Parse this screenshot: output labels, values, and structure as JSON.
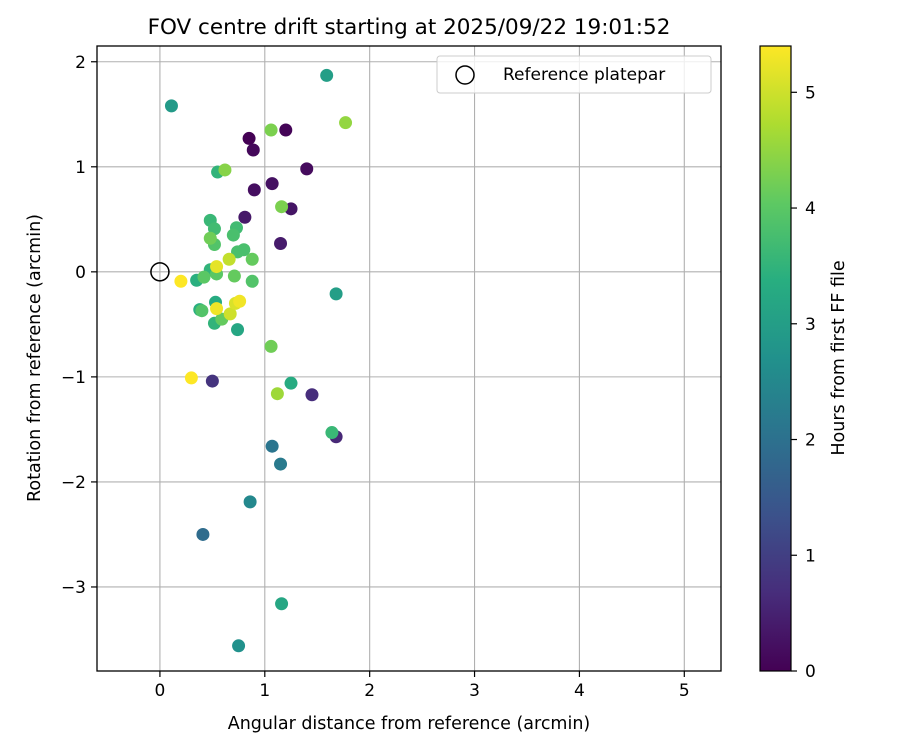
{
  "chart_data": {
    "type": "scatter",
    "title": "FOV centre drift starting at 2025/09/22 19:01:52",
    "xlabel": "Angular distance from reference (arcmin)",
    "ylabel": "Rotation from reference (arcmin)",
    "xlim": [
      -0.6,
      5.35
    ],
    "ylim": [
      -3.8,
      2.15
    ],
    "xticks": [
      0,
      1,
      2,
      3,
      4,
      5
    ],
    "yticks": [
      -3,
      -2,
      -1,
      0,
      1,
      2
    ],
    "xtick_labels": [
      "0",
      "1",
      "2",
      "3",
      "4",
      "5"
    ],
    "ytick_labels": [
      "−3",
      "−2",
      "−1",
      "0",
      "1",
      "2"
    ],
    "grid": true,
    "legend": {
      "position": "top-right",
      "label": "Reference platepar"
    },
    "reference_point": {
      "x": 0,
      "y": 0
    },
    "colorbar": {
      "label": "Hours from first FF file",
      "colormap": "viridis",
      "range": [
        0,
        5.4
      ],
      "ticks": [
        0,
        1,
        2,
        3,
        4,
        5
      ],
      "tick_labels": [
        "0",
        "1",
        "2",
        "3",
        "4",
        "5"
      ]
    },
    "points": [
      {
        "x": 0.85,
        "y": 1.27,
        "h": 0.0
      },
      {
        "x": 1.2,
        "y": 1.35,
        "h": 0.05
      },
      {
        "x": 0.89,
        "y": 1.16,
        "h": 0.1
      },
      {
        "x": 1.4,
        "y": 0.98,
        "h": 0.15
      },
      {
        "x": 0.9,
        "y": 0.78,
        "h": 0.2
      },
      {
        "x": 1.07,
        "y": 0.84,
        "h": 0.25
      },
      {
        "x": 1.25,
        "y": 0.6,
        "h": 0.3
      },
      {
        "x": 0.81,
        "y": 0.52,
        "h": 0.35
      },
      {
        "x": 1.15,
        "y": 0.27,
        "h": 0.4
      },
      {
        "x": 1.68,
        "y": -1.57,
        "h": 0.6
      },
      {
        "x": 1.45,
        "y": -1.17,
        "h": 0.7
      },
      {
        "x": 0.5,
        "y": -1.04,
        "h": 0.8
      },
      {
        "x": 0.41,
        "y": -2.5,
        "h": 1.9
      },
      {
        "x": 1.07,
        "y": -1.66,
        "h": 2.1
      },
      {
        "x": 1.15,
        "y": -1.83,
        "h": 2.2
      },
      {
        "x": 0.86,
        "y": -2.19,
        "h": 2.5
      },
      {
        "x": 0.75,
        "y": -3.56,
        "h": 2.7
      },
      {
        "x": 0.11,
        "y": 1.58,
        "h": 2.9
      },
      {
        "x": 1.59,
        "y": 1.87,
        "h": 3.0
      },
      {
        "x": 1.68,
        "y": -0.21,
        "h": 3.0
      },
      {
        "x": 1.16,
        "y": -3.16,
        "h": 3.2
      },
      {
        "x": 0.74,
        "y": -0.55,
        "h": 3.2
      },
      {
        "x": 0.53,
        "y": -0.29,
        "h": 3.3
      },
      {
        "x": 1.25,
        "y": -1.06,
        "h": 3.3
      },
      {
        "x": 0.35,
        "y": -0.08,
        "h": 3.4
      },
      {
        "x": 0.38,
        "y": -0.36,
        "h": 3.4
      },
      {
        "x": 0.55,
        "y": 0.95,
        "h": 3.5
      },
      {
        "x": 0.48,
        "y": 0.02,
        "h": 3.5
      },
      {
        "x": 0.52,
        "y": -0.49,
        "h": 3.5
      },
      {
        "x": 1.64,
        "y": -1.53,
        "h": 3.6
      },
      {
        "x": 0.48,
        "y": 0.49,
        "h": 3.6
      },
      {
        "x": 0.52,
        "y": 0.41,
        "h": 3.7
      },
      {
        "x": 0.73,
        "y": 0.42,
        "h": 3.7
      },
      {
        "x": 0.7,
        "y": 0.35,
        "h": 3.8
      },
      {
        "x": 0.8,
        "y": 0.21,
        "h": 3.8
      },
      {
        "x": 0.74,
        "y": 0.19,
        "h": 3.8
      },
      {
        "x": 0.52,
        "y": 0.26,
        "h": 3.9
      },
      {
        "x": 0.88,
        "y": -0.09,
        "h": 3.9
      },
      {
        "x": 0.4,
        "y": -0.37,
        "h": 3.9
      },
      {
        "x": 0.54,
        "y": -0.02,
        "h": 4.0
      },
      {
        "x": 0.42,
        "y": -0.05,
        "h": 4.0
      },
      {
        "x": 0.88,
        "y": 0.12,
        "h": 4.1
      },
      {
        "x": 0.71,
        "y": -0.04,
        "h": 4.1
      },
      {
        "x": 0.59,
        "y": -0.45,
        "h": 4.1
      },
      {
        "x": 0.48,
        "y": 0.32,
        "h": 4.2
      },
      {
        "x": 1.06,
        "y": -0.71,
        "h": 4.2
      },
      {
        "x": 1.06,
        "y": 1.35,
        "h": 4.3
      },
      {
        "x": 1.16,
        "y": 0.62,
        "h": 4.3
      },
      {
        "x": 0.62,
        "y": 0.97,
        "h": 4.4
      },
      {
        "x": 1.77,
        "y": 1.42,
        "h": 4.5
      },
      {
        "x": 1.12,
        "y": -1.16,
        "h": 4.6
      },
      {
        "x": 0.66,
        "y": 0.12,
        "h": 4.9
      },
      {
        "x": 0.67,
        "y": -0.4,
        "h": 5.0
      },
      {
        "x": 0.72,
        "y": -0.3,
        "h": 5.1
      },
      {
        "x": 0.54,
        "y": 0.05,
        "h": 5.2
      },
      {
        "x": 0.54,
        "y": -0.35,
        "h": 5.3
      },
      {
        "x": 0.76,
        "y": -0.28,
        "h": 5.3
      },
      {
        "x": 0.2,
        "y": -0.09,
        "h": 5.4
      },
      {
        "x": 0.3,
        "y": -1.01,
        "h": 5.4
      }
    ]
  }
}
